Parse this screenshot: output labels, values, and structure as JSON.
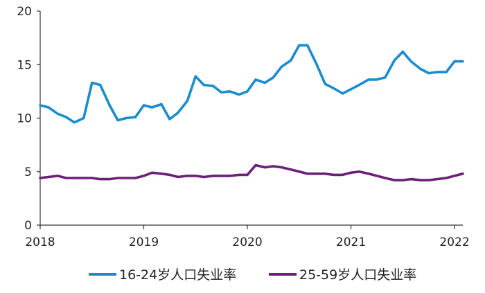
{
  "chart_data": {
    "type": "line",
    "title": "",
    "xlabel": "",
    "ylabel": "",
    "ylim": [
      0,
      20
    ],
    "yticks": [
      0,
      5,
      10,
      15,
      20
    ],
    "xlim": [
      2018,
      2022.08
    ],
    "xticks": [
      "2018",
      "2019",
      "2020",
      "2021",
      "2022"
    ],
    "grid": false,
    "legend_position": "bottom",
    "x": [
      2018.0,
      2018.08,
      2018.17,
      2018.25,
      2018.33,
      2018.42,
      2018.5,
      2018.58,
      2018.67,
      2018.75,
      2018.83,
      2018.92,
      2019.0,
      2019.08,
      2019.17,
      2019.25,
      2019.33,
      2019.42,
      2019.5,
      2019.58,
      2019.67,
      2019.75,
      2019.83,
      2019.92,
      2020.0,
      2020.08,
      2020.17,
      2020.25,
      2020.33,
      2020.42,
      2020.5,
      2020.58,
      2020.67,
      2020.75,
      2020.83,
      2020.92,
      2021.0,
      2021.08,
      2021.17,
      2021.25,
      2021.33,
      2021.42,
      2021.5,
      2021.58,
      2021.67,
      2021.75,
      2021.83,
      2021.92,
      2022.0,
      2022.08
    ],
    "series": [
      {
        "name": "16-24岁人口失业率",
        "color": "#1a8ccc",
        "values": [
          11.2,
          11.0,
          10.4,
          10.1,
          9.6,
          10.0,
          13.3,
          13.1,
          11.2,
          9.8,
          10.0,
          10.1,
          11.2,
          11.0,
          11.3,
          9.9,
          10.5,
          11.6,
          13.9,
          13.1,
          13.0,
          12.4,
          12.5,
          12.2,
          12.5,
          13.6,
          13.3,
          13.8,
          14.8,
          15.4,
          16.8,
          16.8,
          15.0,
          13.2,
          12.8,
          12.3,
          12.7,
          13.1,
          13.6,
          13.6,
          13.8,
          15.4,
          16.2,
          15.3,
          14.6,
          14.2,
          14.3,
          14.3,
          15.3,
          15.3
        ]
      },
      {
        "name": "25-59岁人口失业率",
        "color": "#6b2077",
        "values": [
          4.4,
          4.5,
          4.6,
          4.4,
          4.4,
          4.4,
          4.4,
          4.3,
          4.3,
          4.4,
          4.4,
          4.4,
          4.6,
          4.9,
          4.8,
          4.7,
          4.5,
          4.6,
          4.6,
          4.5,
          4.6,
          4.6,
          4.6,
          4.7,
          4.7,
          5.6,
          5.4,
          5.5,
          5.4,
          5.2,
          5.0,
          4.8,
          4.8,
          4.8,
          4.7,
          4.7,
          4.9,
          5.0,
          4.8,
          4.6,
          4.4,
          4.2,
          4.2,
          4.3,
          4.2,
          4.2,
          4.3,
          4.4,
          4.6,
          4.8
        ]
      }
    ]
  }
}
